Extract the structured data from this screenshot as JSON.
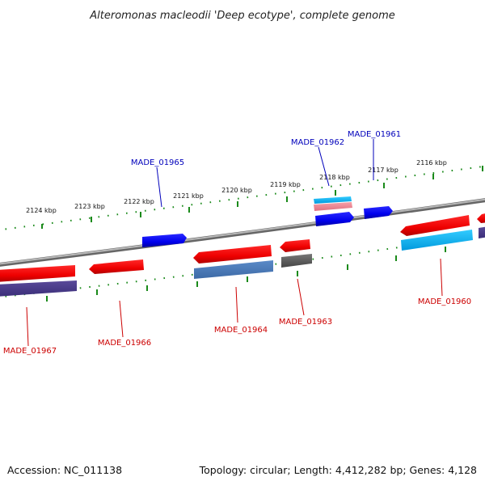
{
  "title": "Alteromonas macleodii 'Deep ecotype', complete genome",
  "footer": {
    "accession": "Accession: NC_011138",
    "summary": "Topology: circular; Length: 4,412,282 bp; Genes: 4,128"
  },
  "colors": {
    "backbone": "#8a8a8a",
    "tick": "#1a8a1a",
    "label_forward": "#0000bb",
    "label_reverse": "#cc0000",
    "leader_forward": "#0000bb",
    "leader_reverse": "#cc0000"
  },
  "ruler_labels": [
    "2124 kbp",
    "2123 kbp",
    "2122 kbp",
    "2121 kbp",
    "2120 kbp",
    "2119 kbp",
    "2118 kbp",
    "2117 kbp",
    "2116 kbp"
  ],
  "gene_labels": {
    "forward": [
      "MADE_01965",
      "MADE_01962",
      "MADE_01961"
    ],
    "reverse": [
      "MADE_01967",
      "MADE_01966",
      "MADE_01964",
      "MADE_01963",
      "MADE_01960"
    ]
  }
}
